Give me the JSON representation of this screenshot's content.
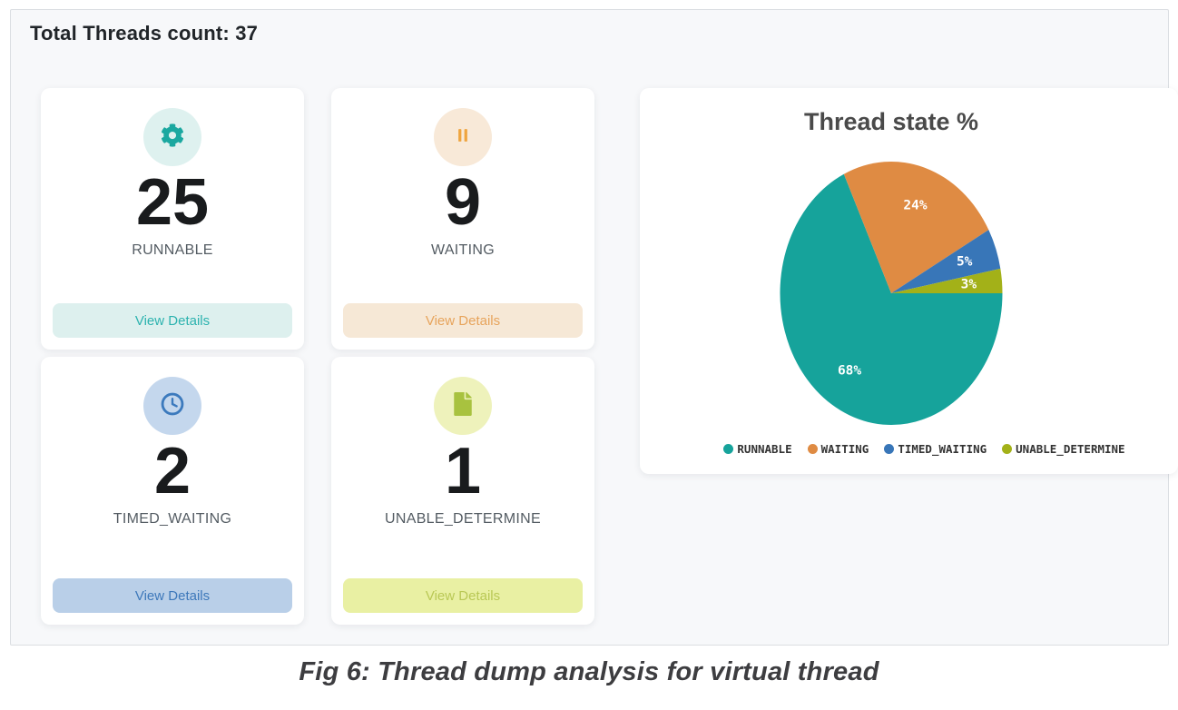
{
  "header": {
    "title": "Total Threads count: 37",
    "total_threads": 37
  },
  "cards": [
    {
      "count": "25",
      "label": "RUNNABLE",
      "button_label": "View Details",
      "icon": "gear-icon",
      "accent": "#1ba8a0",
      "icon_bg": "#def1ef",
      "btn_bg": "#ddf0ee",
      "btn_fg": "#2db3af"
    },
    {
      "count": "9",
      "label": "WAITING",
      "button_label": "View Details",
      "icon": "pause-icon",
      "accent": "#efa43e",
      "icon_bg": "#f8e9d8",
      "btn_bg": "#f6e8d6",
      "btn_fg": "#e7a45c"
    },
    {
      "count": "2",
      "label": "TIMED_WAITING",
      "button_label": "View Details",
      "icon": "clock-icon",
      "accent": "#3c7abd",
      "icon_bg": "#c4d7ed",
      "btn_bg": "#b9cfe8",
      "btn_fg": "#3d78ba"
    },
    {
      "count": "1",
      "label": "UNABLE_DETERMINE",
      "button_label": "View Details",
      "icon": "file-icon",
      "accent": "#a8c23f",
      "icon_bg": "#eef2bb",
      "btn_bg": "#e9f0a3",
      "btn_fg": "#b9c855"
    }
  ],
  "chart_data": {
    "type": "pie",
    "title": "Thread state %",
    "categories": [
      "RUNNABLE",
      "WAITING",
      "TIMED_WAITING",
      "UNABLE_DETERMINE"
    ],
    "values": [
      68,
      24,
      5,
      3
    ],
    "value_labels": [
      "68%",
      "24%",
      "5%",
      "3%"
    ],
    "colors": [
      "#16a39b",
      "#df8b43",
      "#3876b8",
      "#a3b118"
    ],
    "legend_position": "bottom",
    "start_angle_deg": 0,
    "direction": "clockwise",
    "label_radius_fraction": 0.7
  },
  "caption": "Fig 6: Thread dump analysis for virtual thread"
}
